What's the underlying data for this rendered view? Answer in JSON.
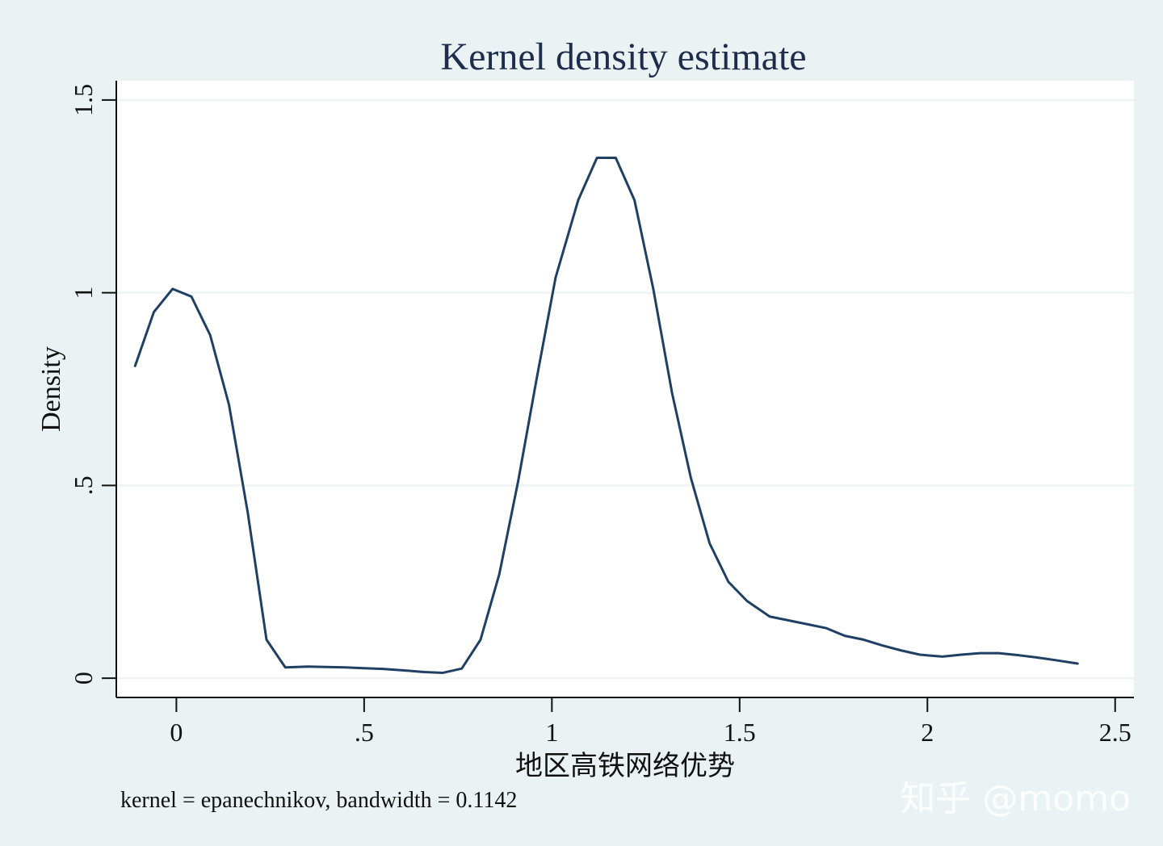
{
  "chart_data": {
    "type": "line",
    "title": "Kernel density estimate",
    "xlabel": "地区高铁网络优势",
    "ylabel": "Density",
    "note": "kernel = epanechnikov, bandwidth = 0.1142",
    "watermark": "知乎 @momo",
    "xlim": [
      -0.16,
      2.55
    ],
    "ylim": [
      -0.05,
      1.55
    ],
    "x_ticks": [
      0,
      0.5,
      1,
      1.5,
      2,
      2.5
    ],
    "x_tick_labels": [
      "0",
      ".5",
      "1",
      "1.5",
      "2",
      "2.5"
    ],
    "y_ticks": [
      0,
      0.5,
      1,
      1.5
    ],
    "y_tick_labels": [
      "0",
      ".5",
      "1",
      "1.5"
    ],
    "grid": true,
    "legend": "none",
    "series": [
      {
        "x": [
          -0.11,
          -0.06,
          -0.01,
          0.04,
          0.09,
          0.14,
          0.19,
          0.24,
          0.29,
          0.35,
          0.4,
          0.45,
          0.5,
          0.55,
          0.61,
          0.66,
          0.71,
          0.76,
          0.81,
          0.86,
          0.91,
          0.96,
          1.01,
          1.07,
          1.12,
          1.17,
          1.22,
          1.27,
          1.32,
          1.37,
          1.42,
          1.47,
          1.52,
          1.58,
          1.63,
          1.68,
          1.73,
          1.78,
          1.83,
          1.88,
          1.93,
          1.98,
          2.04,
          2.09,
          2.14,
          2.19,
          2.24,
          2.29,
          2.34,
          2.4
        ],
        "values": [
          0.81,
          0.95,
          1.01,
          0.99,
          0.89,
          0.71,
          0.43,
          0.1,
          0.028,
          0.03,
          0.029,
          0.028,
          0.026,
          0.024,
          0.02,
          0.016,
          0.014,
          0.025,
          0.1,
          0.27,
          0.51,
          0.78,
          1.04,
          1.24,
          1.35,
          1.35,
          1.24,
          1.01,
          0.74,
          0.52,
          0.35,
          0.25,
          0.2,
          0.16,
          0.15,
          0.14,
          0.13,
          0.11,
          0.1,
          0.085,
          0.072,
          0.061,
          0.056,
          0.061,
          0.065,
          0.065,
          0.06,
          0.054,
          0.047,
          0.038
        ],
        "color": "#1f3f63"
      }
    ],
    "colors": {
      "background": "#eaf2f3",
      "plot_background": "#ffffff",
      "axis": "#111111",
      "grid": "#eaf2f3",
      "title": "#1f2d4d"
    }
  }
}
